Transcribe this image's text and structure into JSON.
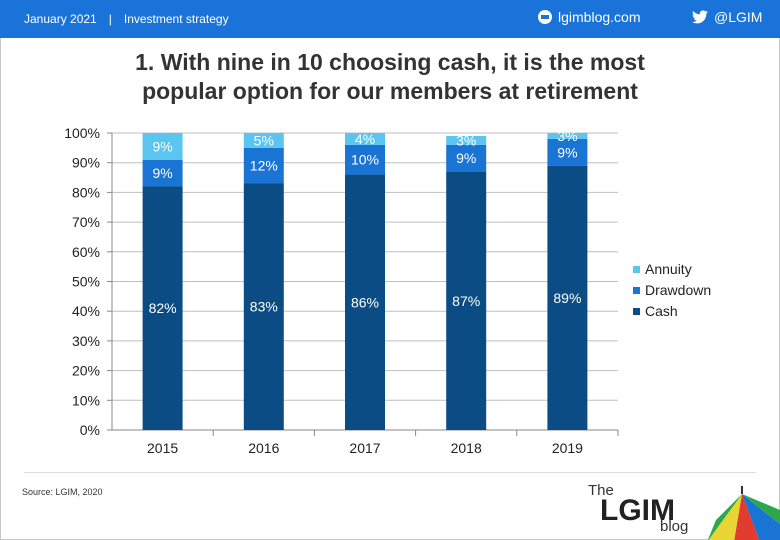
{
  "header": {
    "date": "January 2021",
    "separator": "|",
    "section": "Investment strategy",
    "blog_link": "lgimblog.com",
    "twitter_handle": "@LGIM",
    "bar_color": "#1a73d9"
  },
  "title_line1": "1. With nine in 10 choosing cash, it is the most",
  "title_line2": "popular option for our members at retirement",
  "source": "Source: LGIM, 2020",
  "logo": {
    "the": "The",
    "name": "LGIM",
    "blog": "blog"
  },
  "chart_data": {
    "type": "bar",
    "stacked": true,
    "categories": [
      "2015",
      "2016",
      "2017",
      "2018",
      "2019"
    ],
    "series": [
      {
        "name": "Cash",
        "values": [
          82,
          83,
          86,
          87,
          89
        ],
        "labels": [
          "82%",
          "83%",
          "86%",
          "87%",
          "89%"
        ],
        "color": "#0c4c85"
      },
      {
        "name": "Drawdown",
        "values": [
          9,
          12,
          10,
          9,
          9
        ],
        "labels": [
          "9%",
          "12%",
          "10%",
          "9%",
          "9%"
        ],
        "color": "#1a74d4"
      },
      {
        "name": "Annuity",
        "values": [
          9,
          5,
          4,
          3,
          3
        ],
        "labels": [
          "9%",
          "5%",
          "4%",
          "3%",
          "3%"
        ],
        "color": "#5bc4ef"
      }
    ],
    "y_ticks": [
      "0%",
      "10%",
      "20%",
      "30%",
      "40%",
      "50%",
      "60%",
      "70%",
      "80%",
      "90%",
      "100%"
    ],
    "ylim": [
      0,
      100
    ],
    "legend": [
      "Annuity",
      "Drawdown",
      "Cash"
    ],
    "legend_position": "right",
    "grid": true
  }
}
